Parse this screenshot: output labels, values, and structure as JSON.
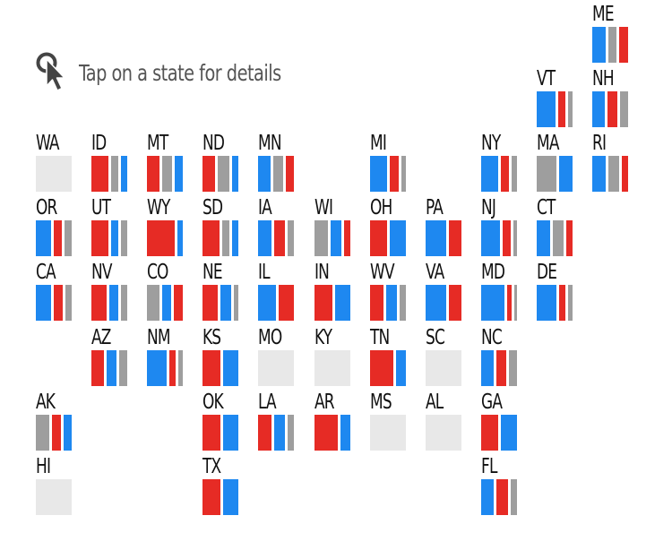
{
  "hint": {
    "text": "Tap on a state for details",
    "icon": "tap-pointer-icon"
  },
  "colors": {
    "D": "#1e88f0",
    "R": "#e62b25",
    "O": "#9e9e9e",
    "empty": "#e8e8e8"
  },
  "states": [
    {
      "abbr": "ME",
      "col": 10,
      "row": 0,
      "segments": [
        [
          "D",
          0.45
        ],
        [
          "O",
          0.25
        ],
        [
          "R",
          0.3
        ]
      ]
    },
    {
      "abbr": "VT",
      "col": 9,
      "row": 1,
      "segments": [
        [
          "D",
          0.62
        ],
        [
          "R",
          0.22
        ],
        [
          "O",
          0.16
        ]
      ]
    },
    {
      "abbr": "NH",
      "col": 10,
      "row": 1,
      "segments": [
        [
          "D",
          0.4
        ],
        [
          "R",
          0.33
        ],
        [
          "O",
          0.27
        ]
      ]
    },
    {
      "abbr": "WA",
      "col": 0,
      "row": 2,
      "segments": []
    },
    {
      "abbr": "ID",
      "col": 1,
      "row": 2,
      "segments": [
        [
          "R",
          0.55
        ],
        [
          "O",
          0.25
        ],
        [
          "D",
          0.2
        ]
      ]
    },
    {
      "abbr": "MT",
      "col": 2,
      "row": 2,
      "segments": [
        [
          "R",
          0.42
        ],
        [
          "O",
          0.33
        ],
        [
          "D",
          0.25
        ]
      ]
    },
    {
      "abbr": "ND",
      "col": 3,
      "row": 2,
      "segments": [
        [
          "R",
          0.4
        ],
        [
          "O",
          0.4
        ],
        [
          "D",
          0.2
        ]
      ]
    },
    {
      "abbr": "MN",
      "col": 4,
      "row": 2,
      "segments": [
        [
          "D",
          0.42
        ],
        [
          "O",
          0.33
        ],
        [
          "R",
          0.25
        ]
      ]
    },
    {
      "abbr": "MI",
      "col": 6,
      "row": 2,
      "segments": [
        [
          "D",
          0.55
        ],
        [
          "R",
          0.3
        ],
        [
          "O",
          0.15
        ]
      ]
    },
    {
      "abbr": "NY",
      "col": 8,
      "row": 2,
      "segments": [
        [
          "D",
          0.55
        ],
        [
          "R",
          0.28
        ],
        [
          "O",
          0.17
        ]
      ]
    },
    {
      "abbr": "MA",
      "col": 9,
      "row": 2,
      "segments": [
        [
          "O",
          0.6
        ],
        [
          "D",
          0.4
        ]
      ]
    },
    {
      "abbr": "RI",
      "col": 10,
      "row": 2,
      "segments": [
        [
          "D",
          0.45
        ],
        [
          "O",
          0.35
        ],
        [
          "R",
          0.2
        ]
      ]
    },
    {
      "abbr": "OR",
      "col": 0,
      "row": 3,
      "segments": [
        [
          "D",
          0.5
        ],
        [
          "R",
          0.25
        ],
        [
          "O",
          0.25
        ]
      ]
    },
    {
      "abbr": "UT",
      "col": 1,
      "row": 3,
      "segments": [
        [
          "R",
          0.55
        ],
        [
          "D",
          0.25
        ],
        [
          "O",
          0.2
        ]
      ]
    },
    {
      "abbr": "WY",
      "col": 2,
      "row": 3,
      "segments": [
        [
          "R",
          0.85
        ],
        [
          "D",
          0.15
        ]
      ]
    },
    {
      "abbr": "SD",
      "col": 3,
      "row": 3,
      "segments": [
        [
          "R",
          0.55
        ],
        [
          "O",
          0.25
        ],
        [
          "D",
          0.2
        ]
      ]
    },
    {
      "abbr": "IA",
      "col": 4,
      "row": 3,
      "segments": [
        [
          "D",
          0.45
        ],
        [
          "R",
          0.35
        ],
        [
          "O",
          0.2
        ]
      ]
    },
    {
      "abbr": "WI",
      "col": 5,
      "row": 3,
      "segments": [
        [
          "O",
          0.45
        ],
        [
          "D",
          0.35
        ],
        [
          "R",
          0.2
        ]
      ]
    },
    {
      "abbr": "OH",
      "col": 6,
      "row": 3,
      "segments": [
        [
          "R",
          0.5
        ],
        [
          "D",
          0.5
        ]
      ]
    },
    {
      "abbr": "PA",
      "col": 7,
      "row": 3,
      "segments": [
        [
          "D",
          0.62
        ],
        [
          "R",
          0.38
        ]
      ]
    },
    {
      "abbr": "NJ",
      "col": 8,
      "row": 3,
      "segments": [
        [
          "D",
          0.62
        ],
        [
          "R",
          0.25
        ],
        [
          "O",
          0.13
        ]
      ]
    },
    {
      "abbr": "CT",
      "col": 9,
      "row": 3,
      "segments": [
        [
          "D",
          0.45
        ],
        [
          "O",
          0.35
        ],
        [
          "R",
          0.2
        ]
      ]
    },
    {
      "abbr": "CA",
      "col": 0,
      "row": 4,
      "segments": [
        [
          "D",
          0.5
        ],
        [
          "R",
          0.3
        ],
        [
          "O",
          0.2
        ]
      ]
    },
    {
      "abbr": "NV",
      "col": 1,
      "row": 4,
      "segments": [
        [
          "R",
          0.5
        ],
        [
          "D",
          0.3
        ],
        [
          "O",
          0.2
        ]
      ]
    },
    {
      "abbr": "CO",
      "col": 2,
      "row": 4,
      "segments": [
        [
          "O",
          0.4
        ],
        [
          "D",
          0.3
        ],
        [
          "R",
          0.3
        ]
      ]
    },
    {
      "abbr": "NE",
      "col": 3,
      "row": 4,
      "segments": [
        [
          "R",
          0.5
        ],
        [
          "D",
          0.35
        ],
        [
          "O",
          0.15
        ]
      ]
    },
    {
      "abbr": "IL",
      "col": 4,
      "row": 4,
      "segments": [
        [
          "D",
          0.55
        ],
        [
          "R",
          0.45
        ]
      ]
    },
    {
      "abbr": "IN",
      "col": 5,
      "row": 4,
      "segments": [
        [
          "R",
          0.55
        ],
        [
          "D",
          0.45
        ]
      ]
    },
    {
      "abbr": "WV",
      "col": 6,
      "row": 4,
      "segments": [
        [
          "R",
          0.45
        ],
        [
          "D",
          0.35
        ],
        [
          "O",
          0.2
        ]
      ]
    },
    {
      "abbr": "VA",
      "col": 7,
      "row": 4,
      "segments": [
        [
          "D",
          0.62
        ],
        [
          "R",
          0.38
        ]
      ]
    },
    {
      "abbr": "MD",
      "col": 8,
      "row": 4,
      "segments": [
        [
          "D",
          0.75
        ],
        [
          "R",
          0.15
        ],
        [
          "O",
          0.1
        ]
      ]
    },
    {
      "abbr": "DE",
      "col": 9,
      "row": 4,
      "segments": [
        [
          "D",
          0.65
        ],
        [
          "R",
          0.2
        ],
        [
          "O",
          0.15
        ]
      ]
    },
    {
      "abbr": "AZ",
      "col": 1,
      "row": 5,
      "segments": [
        [
          "R",
          0.4
        ],
        [
          "D",
          0.35
        ],
        [
          "O",
          0.25
        ]
      ]
    },
    {
      "abbr": "NM",
      "col": 2,
      "row": 5,
      "segments": [
        [
          "D",
          0.65
        ],
        [
          "R",
          0.2
        ],
        [
          "O",
          0.15
        ]
      ]
    },
    {
      "abbr": "KS",
      "col": 3,
      "row": 5,
      "segments": [
        [
          "R",
          0.55
        ],
        [
          "D",
          0.45
        ]
      ]
    },
    {
      "abbr": "MO",
      "col": 4,
      "row": 5,
      "segments": []
    },
    {
      "abbr": "KY",
      "col": 5,
      "row": 5,
      "segments": []
    },
    {
      "abbr": "TN",
      "col": 6,
      "row": 5,
      "segments": [
        [
          "R",
          0.7
        ],
        [
          "D",
          0.3
        ]
      ]
    },
    {
      "abbr": "SC",
      "col": 7,
      "row": 5,
      "segments": []
    },
    {
      "abbr": "NC",
      "col": 8,
      "row": 5,
      "segments": [
        [
          "D",
          0.4
        ],
        [
          "R",
          0.35
        ],
        [
          "O",
          0.25
        ]
      ]
    },
    {
      "abbr": "AK",
      "col": 0,
      "row": 6,
      "segments": [
        [
          "O",
          0.45
        ],
        [
          "R",
          0.3
        ],
        [
          "D",
          0.25
        ]
      ]
    },
    {
      "abbr": "OK",
      "col": 3,
      "row": 6,
      "segments": [
        [
          "R",
          0.55
        ],
        [
          "D",
          0.45
        ]
      ]
    },
    {
      "abbr": "LA",
      "col": 4,
      "row": 6,
      "segments": [
        [
          "R",
          0.45
        ],
        [
          "D",
          0.35
        ],
        [
          "O",
          0.2
        ]
      ]
    },
    {
      "abbr": "AR",
      "col": 5,
      "row": 6,
      "segments": [
        [
          "R",
          0.7
        ],
        [
          "D",
          0.3
        ]
      ]
    },
    {
      "abbr": "MS",
      "col": 6,
      "row": 6,
      "segments": []
    },
    {
      "abbr": "AL",
      "col": 7,
      "row": 6,
      "segments": []
    },
    {
      "abbr": "GA",
      "col": 8,
      "row": 6,
      "segments": [
        [
          "R",
          0.5
        ],
        [
          "D",
          0.5
        ]
      ]
    },
    {
      "abbr": "HI",
      "col": 0,
      "row": 7,
      "segments": []
    },
    {
      "abbr": "TX",
      "col": 3,
      "row": 7,
      "segments": [
        [
          "R",
          0.55
        ],
        [
          "D",
          0.45
        ]
      ]
    },
    {
      "abbr": "FL",
      "col": 8,
      "row": 7,
      "segments": [
        [
          "D",
          0.4
        ],
        [
          "R",
          0.4
        ],
        [
          "O",
          0.2
        ]
      ]
    }
  ]
}
